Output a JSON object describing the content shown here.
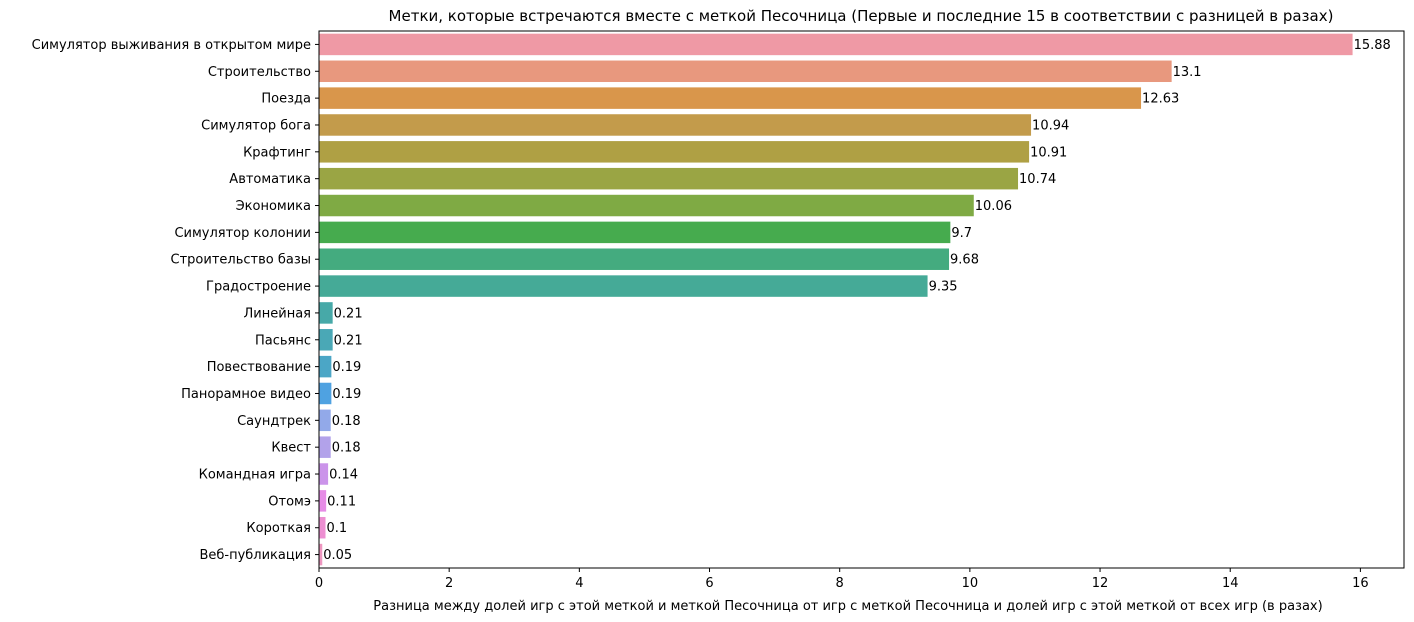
{
  "chart_data": {
    "type": "bar",
    "orientation": "horizontal",
    "title": "Метки, которые встречаются вместе с меткой Песочница (Первые и последние 15 в соответствии с разницей в разах)",
    "xlabel": "Разница между долей игр с этой меткой и меткой Песочница от игр с меткой Песочница и долей игр с этой меткой от всех игр (в разах)",
    "ylabel": "",
    "xlim": [
      0,
      16.67
    ],
    "xticks": [
      0,
      2,
      4,
      6,
      8,
      10,
      12,
      14,
      16
    ],
    "grid": false,
    "categories": [
      "Симулятор выживания в открытом мире",
      "Строительство",
      "Поезда",
      "Симулятор бога",
      "Крафтинг",
      "Автоматика",
      "Экономика",
      "Симулятор колонии",
      "Строительство базы",
      "Градостроение",
      "Линейная",
      "Пасьянс",
      "Повествование",
      "Панорамное видео",
      "Саундтрек",
      "Квест",
      "Командная игра",
      "Отомэ",
      "Короткая",
      "Веб-публикация"
    ],
    "values": [
      15.88,
      13.1,
      12.63,
      10.94,
      10.91,
      10.74,
      10.06,
      9.7,
      9.68,
      9.35,
      0.21,
      0.21,
      0.19,
      0.19,
      0.18,
      0.18,
      0.14,
      0.11,
      0.1,
      0.05
    ],
    "value_labels": [
      "15.88",
      "13.1",
      "12.63",
      "10.94",
      "10.91",
      "10.74",
      "10.06",
      "9.7",
      "9.68",
      "9.35",
      "0.21",
      "0.21",
      "0.19",
      "0.19",
      "0.18",
      "0.18",
      "0.14",
      "0.11",
      "0.1",
      "0.05"
    ],
    "colors": [
      "#ef99a5",
      "#e8987e",
      "#d9964b",
      "#c39b4b",
      "#afa044",
      "#9aa544",
      "#7faa44",
      "#46ab4e",
      "#44ab7f",
      "#45aa97",
      "#47a9a8",
      "#4aa8b6",
      "#4ba6c6",
      "#4fa2e1",
      "#92a9e9",
      "#b2a2ea",
      "#cb94ea",
      "#e68ce6",
      "#ed8fd2",
      "#ee97c0"
    ]
  }
}
